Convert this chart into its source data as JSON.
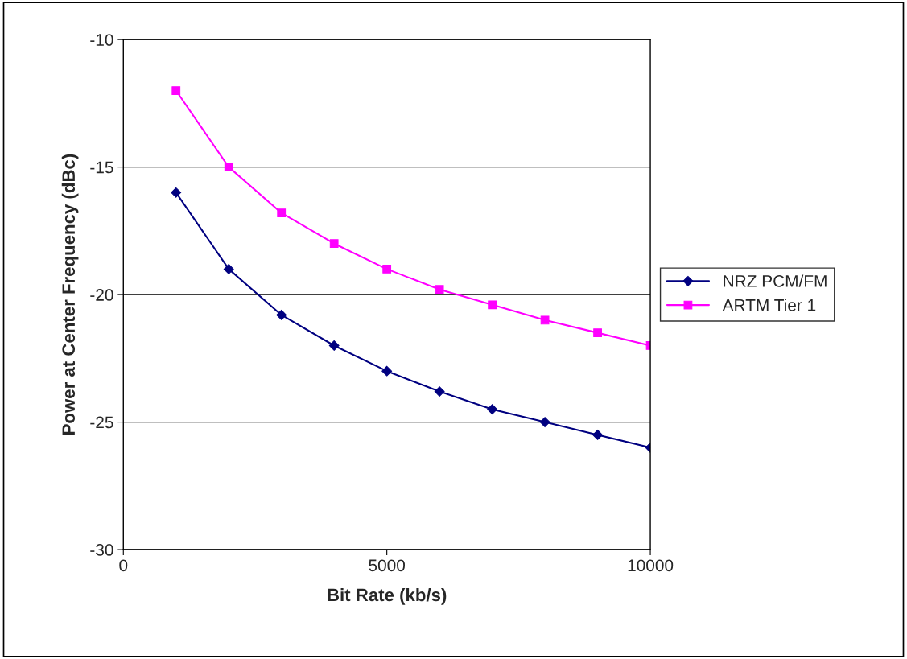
{
  "chart_data": {
    "type": "line",
    "xlabel": "Bit Rate (kb/s)",
    "ylabel": "Power at Center Frequency (dBc)",
    "x": [
      1000,
      2000,
      3000,
      4000,
      5000,
      6000,
      7000,
      8000,
      9000,
      10000
    ],
    "series": [
      {
        "name": "NRZ PCM/FM",
        "color": "#000080",
        "marker": "diamond",
        "values": [
          -16,
          -19,
          -20.8,
          -22,
          -23,
          -23.8,
          -24.5,
          -25,
          -25.5,
          -26
        ]
      },
      {
        "name": "ARTM Tier 1",
        "color": "#ff00ff",
        "marker": "square",
        "values": [
          -12,
          -15,
          -16.8,
          -18,
          -19,
          -19.8,
          -20.4,
          -21,
          -21.5,
          -22
        ]
      }
    ],
    "xlim": [
      0,
      10000
    ],
    "xticks": [
      0,
      5000,
      10000
    ],
    "ylim": [
      -30,
      -10
    ],
    "yticks": [
      -30,
      -25,
      -20,
      -15,
      -10
    ],
    "grid": "y",
    "legend": "right",
    "line_style": "solid"
  }
}
